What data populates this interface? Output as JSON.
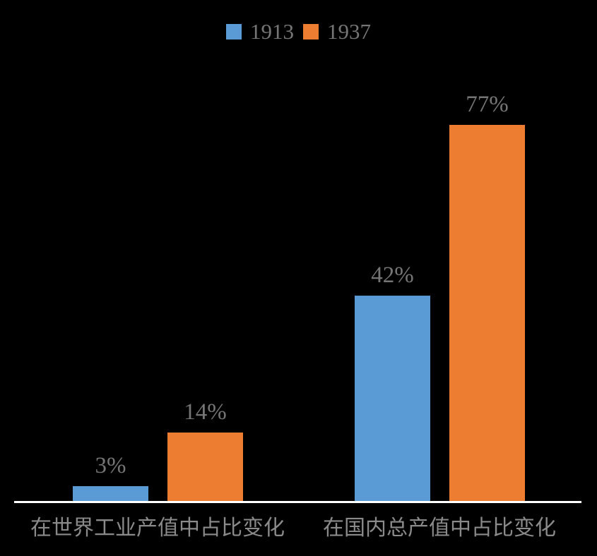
{
  "chart_data": {
    "type": "bar",
    "title": "",
    "xlabel": "",
    "ylabel": "",
    "categories": [
      "在世界工业产值中占比变化",
      "在国内总产值中占比变化"
    ],
    "series": [
      {
        "name": "1913",
        "color": "#5B9BD5",
        "values": [
          3,
          42
        ],
        "labels": [
          "3%",
          "42%"
        ]
      },
      {
        "name": "1937",
        "color": "#ED7D31",
        "values": [
          14,
          77
        ],
        "labels": [
          "14%",
          "77%"
        ]
      }
    ],
    "unit": "%",
    "ylim": [
      0,
      80
    ],
    "grid": false,
    "y_axis_visible": false,
    "legend_position": "top-center",
    "background_color": "#000000",
    "axis_line_color": "#FFFFFF",
    "value_label_color": "#757575",
    "legend_text_color": "#757575",
    "category_label_color": "#8A8A8A"
  }
}
